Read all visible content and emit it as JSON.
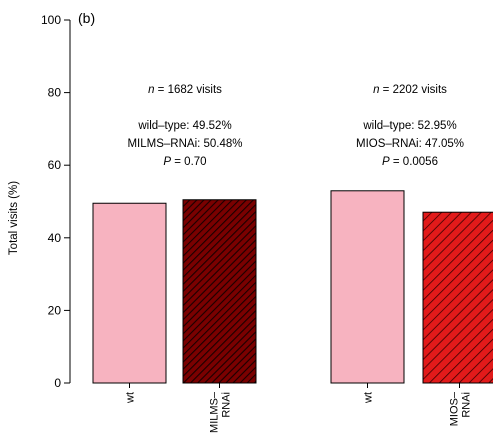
{
  "chart_data": {
    "type": "bar",
    "panel_label": "(b)",
    "ylabel": "Total visits (%)",
    "ylim": [
      0,
      100
    ],
    "yticks": [
      0,
      20,
      40,
      60,
      80,
      100
    ],
    "groups": [
      {
        "n_label": "= 1682 visits",
        "n_symbol": "n",
        "stats": [
          "wild–type: 49.52%",
          "MILMS–RNAi: 50.48%"
        ],
        "p_symbol": "P",
        "p_label": "= 0.70",
        "bars": [
          {
            "category": "wt",
            "category_lines": [
              "wt"
            ],
            "value": 49.52,
            "fill": "#f7b3c0",
            "hatch": false
          },
          {
            "category": "MILMS–RNAi",
            "category_lines": [
              "MILMS–",
              "RNAi"
            ],
            "value": 50.48,
            "fill": "#7a0000",
            "hatch": true
          }
        ]
      },
      {
        "n_label": "= 2202 visits",
        "n_symbol": "n",
        "stats": [
          "wild–type: 52.95%",
          "MIOS–RNAi: 47.05%"
        ],
        "p_symbol": "P",
        "p_label": "= 0.0056",
        "bars": [
          {
            "category": "wt",
            "category_lines": [
              "wt"
            ],
            "value": 52.95,
            "fill": "#f7b3c0",
            "hatch": false
          },
          {
            "category": "MIOS–RNAi",
            "category_lines": [
              "MIOS–",
              "RNAi"
            ],
            "value": 47.05,
            "fill": "#e21a1a",
            "hatch": true
          }
        ]
      }
    ]
  }
}
